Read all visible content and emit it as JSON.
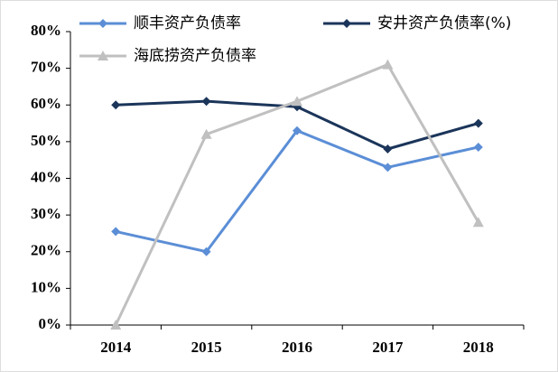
{
  "chart_data": {
    "type": "line",
    "categories": [
      "2014",
      "2015",
      "2016",
      "2017",
      "2018"
    ],
    "series": [
      {
        "name": "顺丰资产负债率",
        "color": "#5b8ed6",
        "marker": "diamond",
        "values": [
          25.5,
          20,
          53,
          43,
          48.5
        ]
      },
      {
        "name": "安井资产负债率(%)",
        "color": "#1b355a",
        "marker": "diamond",
        "values": [
          60,
          61,
          59.5,
          48,
          55
        ]
      },
      {
        "name": "海底捞资产负债率",
        "color": "#c0c0c0",
        "marker": "triangle",
        "values": [
          0,
          52,
          61,
          71,
          28
        ]
      }
    ],
    "ylim": [
      0,
      80
    ],
    "yticks": [
      {
        "value": 0,
        "label": "0%"
      },
      {
        "value": 10,
        "label": "10%"
      },
      {
        "value": 20,
        "label": "20%"
      },
      {
        "value": 30,
        "label": "30%"
      },
      {
        "value": 40,
        "label": "40%"
      },
      {
        "value": 50,
        "label": "50%"
      },
      {
        "value": 60,
        "label": "60%"
      },
      {
        "value": 70,
        "label": "70%"
      },
      {
        "value": 80,
        "label": "80%"
      }
    ],
    "grid": false
  }
}
